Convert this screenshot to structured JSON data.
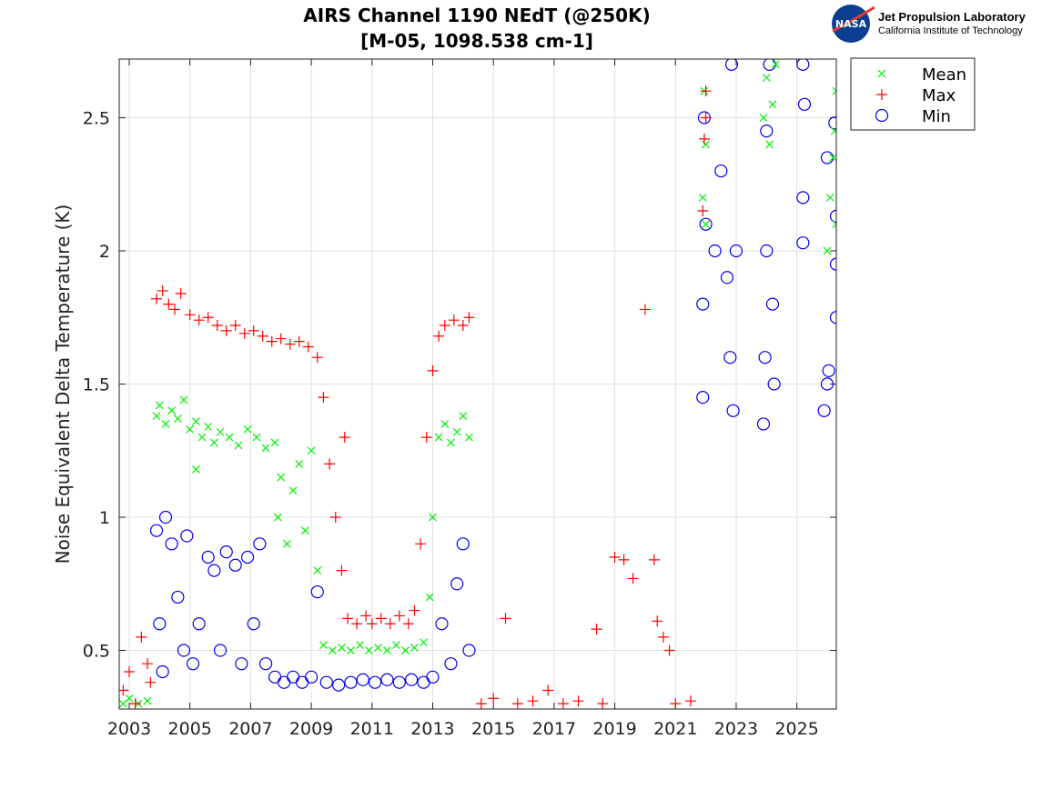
{
  "logo": {
    "org": "Jet Propulsion Laboratory",
    "sub": "California Institute of Technology",
    "badge": "NASA"
  },
  "chart_data": {
    "type": "scatter",
    "title": [
      "AIRS Channel 1190 NEdT (@250K)",
      "[M-05, 1098.538 cm-1]"
    ],
    "xlabel": "",
    "ylabel": "Noise Equivalent Delta Temperature (K)",
    "xlim": [
      2002.67,
      2026.3
    ],
    "ylim": [
      0.28,
      2.72
    ],
    "xticks": [
      2003,
      2005,
      2007,
      2009,
      2011,
      2013,
      2015,
      2017,
      2019,
      2021,
      2023,
      2025
    ],
    "yticks": [
      0.5,
      1,
      1.5,
      2,
      2.5
    ],
    "ytick_labels": [
      "0.5",
      "1",
      "1.5",
      "2",
      "2.5"
    ],
    "grid": true,
    "legend_position": "outside-top-right",
    "series": [
      {
        "name": "Mean",
        "marker": "x",
        "color": "#00ee00",
        "points": [
          [
            2002.8,
            0.3
          ],
          [
            2003.0,
            0.32
          ],
          [
            2003.3,
            0.3
          ],
          [
            2003.6,
            0.31
          ],
          [
            2003.9,
            1.38
          ],
          [
            2004.0,
            1.42
          ],
          [
            2004.2,
            1.35
          ],
          [
            2004.4,
            1.4
          ],
          [
            2004.6,
            1.37
          ],
          [
            2004.8,
            1.44
          ],
          [
            2005.0,
            1.33
          ],
          [
            2005.2,
            1.36
          ],
          [
            2005.4,
            1.3
          ],
          [
            2005.2,
            1.18
          ],
          [
            2005.6,
            1.34
          ],
          [
            2005.8,
            1.28
          ],
          [
            2006.0,
            1.32
          ],
          [
            2006.3,
            1.3
          ],
          [
            2006.6,
            1.27
          ],
          [
            2006.9,
            1.33
          ],
          [
            2007.2,
            1.3
          ],
          [
            2007.5,
            1.26
          ],
          [
            2007.8,
            1.28
          ],
          [
            2007.9,
            1.0
          ],
          [
            2008.0,
            1.15
          ],
          [
            2008.2,
            0.9
          ],
          [
            2008.4,
            1.1
          ],
          [
            2008.6,
            1.2
          ],
          [
            2008.8,
            0.95
          ],
          [
            2009.0,
            1.25
          ],
          [
            2009.2,
            0.8
          ],
          [
            2009.4,
            0.52
          ],
          [
            2009.7,
            0.5
          ],
          [
            2010.0,
            0.51
          ],
          [
            2010.3,
            0.5
          ],
          [
            2010.6,
            0.52
          ],
          [
            2010.9,
            0.5
          ],
          [
            2011.2,
            0.51
          ],
          [
            2011.5,
            0.5
          ],
          [
            2011.8,
            0.52
          ],
          [
            2012.1,
            0.5
          ],
          [
            2012.4,
            0.51
          ],
          [
            2012.7,
            0.53
          ],
          [
            2012.9,
            0.7
          ],
          [
            2013.0,
            1.0
          ],
          [
            2013.2,
            1.3
          ],
          [
            2013.4,
            1.35
          ],
          [
            2013.6,
            1.28
          ],
          [
            2013.8,
            1.32
          ],
          [
            2014.0,
            1.38
          ],
          [
            2014.2,
            1.3
          ],
          [
            2021.9,
            2.2
          ],
          [
            2022.0,
            2.4
          ],
          [
            2021.95,
            2.6
          ],
          [
            2022.0,
            2.1
          ],
          [
            2023.9,
            2.5
          ],
          [
            2024.0,
            2.65
          ],
          [
            2024.1,
            2.4
          ],
          [
            2024.3,
            2.7
          ],
          [
            2024.2,
            2.55
          ],
          [
            2026.0,
            2.0
          ],
          [
            2026.1,
            2.2
          ],
          [
            2026.2,
            2.35
          ],
          [
            2026.3,
            2.6
          ],
          [
            2026.25,
            2.45
          ],
          [
            2026.3,
            2.1
          ]
        ]
      },
      {
        "name": "Max",
        "marker": "+",
        "color": "#ff0000",
        "points": [
          [
            2002.8,
            0.35
          ],
          [
            2003.0,
            0.42
          ],
          [
            2003.2,
            0.3
          ],
          [
            2003.4,
            0.55
          ],
          [
            2003.6,
            0.45
          ],
          [
            2003.7,
            0.38
          ],
          [
            2003.9,
            1.82
          ],
          [
            2004.1,
            1.85
          ],
          [
            2004.3,
            1.8
          ],
          [
            2004.5,
            1.78
          ],
          [
            2004.7,
            1.84
          ],
          [
            2005.0,
            1.76
          ],
          [
            2005.3,
            1.74
          ],
          [
            2005.6,
            1.75
          ],
          [
            2005.9,
            1.72
          ],
          [
            2006.2,
            1.7
          ],
          [
            2006.5,
            1.72
          ],
          [
            2006.8,
            1.69
          ],
          [
            2007.1,
            1.7
          ],
          [
            2007.4,
            1.68
          ],
          [
            2007.7,
            1.66
          ],
          [
            2008.0,
            1.67
          ],
          [
            2008.3,
            1.65
          ],
          [
            2008.6,
            1.66
          ],
          [
            2008.9,
            1.64
          ],
          [
            2009.2,
            1.6
          ],
          [
            2009.4,
            1.45
          ],
          [
            2009.6,
            1.2
          ],
          [
            2009.8,
            1.0
          ],
          [
            2010.0,
            0.8
          ],
          [
            2010.1,
            1.3
          ],
          [
            2010.2,
            0.62
          ],
          [
            2010.5,
            0.6
          ],
          [
            2010.8,
            0.63
          ],
          [
            2011.0,
            0.6
          ],
          [
            2011.3,
            0.62
          ],
          [
            2011.6,
            0.6
          ],
          [
            2011.9,
            0.63
          ],
          [
            2012.2,
            0.6
          ],
          [
            2012.4,
            0.65
          ],
          [
            2012.6,
            0.9
          ],
          [
            2012.8,
            1.3
          ],
          [
            2013.0,
            1.55
          ],
          [
            2013.2,
            1.68
          ],
          [
            2013.4,
            1.72
          ],
          [
            2013.7,
            1.74
          ],
          [
            2014.0,
            1.72
          ],
          [
            2014.2,
            1.75
          ],
          [
            2014.6,
            0.3
          ],
          [
            2015.0,
            0.32
          ],
          [
            2015.4,
            0.62
          ],
          [
            2015.8,
            0.3
          ],
          [
            2016.3,
            0.31
          ],
          [
            2016.8,
            0.35
          ],
          [
            2017.3,
            0.3
          ],
          [
            2017.8,
            0.31
          ],
          [
            2018.4,
            0.58
          ],
          [
            2018.6,
            0.3
          ],
          [
            2019.0,
            0.85
          ],
          [
            2019.3,
            0.84
          ],
          [
            2019.6,
            0.77
          ],
          [
            2020.0,
            1.78
          ],
          [
            2020.3,
            0.84
          ],
          [
            2020.4,
            0.61
          ],
          [
            2020.6,
            0.55
          ],
          [
            2020.8,
            0.5
          ],
          [
            2021.0,
            0.3
          ],
          [
            2021.5,
            0.31
          ],
          [
            2021.9,
            2.15
          ],
          [
            2021.95,
            2.42
          ],
          [
            2022.0,
            2.6
          ],
          [
            2022.0,
            2.5
          ]
        ]
      },
      {
        "name": "Min",
        "marker": "o",
        "color": "#0000ee",
        "points": [
          [
            2003.9,
            0.95
          ],
          [
            2004.0,
            0.6
          ],
          [
            2004.1,
            0.42
          ],
          [
            2004.2,
            1.0
          ],
          [
            2004.4,
            0.9
          ],
          [
            2004.6,
            0.7
          ],
          [
            2004.8,
            0.5
          ],
          [
            2004.9,
            0.93
          ],
          [
            2005.1,
            0.45
          ],
          [
            2005.3,
            0.6
          ],
          [
            2005.6,
            0.85
          ],
          [
            2005.8,
            0.8
          ],
          [
            2006.0,
            0.5
          ],
          [
            2006.2,
            0.87
          ],
          [
            2006.5,
            0.82
          ],
          [
            2006.7,
            0.45
          ],
          [
            2006.9,
            0.85
          ],
          [
            2007.1,
            0.6
          ],
          [
            2007.3,
            0.9
          ],
          [
            2007.5,
            0.45
          ],
          [
            2007.8,
            0.4
          ],
          [
            2008.1,
            0.38
          ],
          [
            2008.4,
            0.4
          ],
          [
            2008.7,
            0.38
          ],
          [
            2009.0,
            0.4
          ],
          [
            2009.2,
            0.72
          ],
          [
            2009.5,
            0.38
          ],
          [
            2009.9,
            0.37
          ],
          [
            2010.3,
            0.38
          ],
          [
            2010.7,
            0.39
          ],
          [
            2011.1,
            0.38
          ],
          [
            2011.5,
            0.39
          ],
          [
            2011.9,
            0.38
          ],
          [
            2012.3,
            0.39
          ],
          [
            2012.7,
            0.38
          ],
          [
            2013.0,
            0.4
          ],
          [
            2013.3,
            0.6
          ],
          [
            2013.6,
            0.45
          ],
          [
            2013.8,
            0.75
          ],
          [
            2014.0,
            0.9
          ],
          [
            2014.2,
            0.5
          ],
          [
            2021.9,
            1.45
          ],
          [
            2021.9,
            1.8
          ],
          [
            2022.0,
            2.1
          ],
          [
            2021.95,
            2.5
          ],
          [
            2022.3,
            2.0
          ],
          [
            2022.5,
            2.3
          ],
          [
            2022.7,
            1.9
          ],
          [
            2022.8,
            1.6
          ],
          [
            2022.9,
            1.4
          ],
          [
            2022.85,
            2.7
          ],
          [
            2023.0,
            2.0
          ],
          [
            2023.9,
            1.35
          ],
          [
            2023.95,
            1.6
          ],
          [
            2024.0,
            2.0
          ],
          [
            2024.0,
            2.45
          ],
          [
            2024.1,
            2.7
          ],
          [
            2024.2,
            1.8
          ],
          [
            2024.25,
            1.5
          ],
          [
            2025.2,
            2.03
          ],
          [
            2025.2,
            2.2
          ],
          [
            2025.25,
            2.55
          ],
          [
            2025.2,
            2.7
          ],
          [
            2025.9,
            1.4
          ],
          [
            2026.0,
            1.5
          ],
          [
            2026.05,
            1.55
          ],
          [
            2026.0,
            2.35
          ],
          [
            2026.3,
            1.75
          ],
          [
            2026.3,
            1.95
          ],
          [
            2026.3,
            2.13
          ],
          [
            2026.25,
            2.48
          ]
        ]
      }
    ]
  }
}
